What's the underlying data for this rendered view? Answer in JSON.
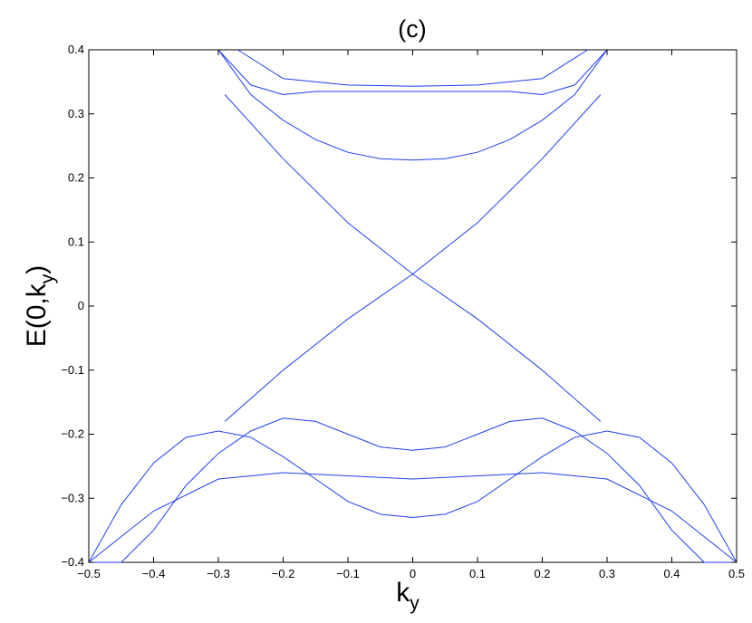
{
  "chart_data": {
    "type": "line",
    "title": "(c)",
    "xlabel": {
      "main": "k",
      "sub": "y"
    },
    "ylabel": {
      "prefix": "E(0,k",
      "sub": "y",
      "suffix": ")"
    },
    "xlim": [
      -0.5,
      0.5
    ],
    "ylim": [
      -0.4,
      0.4
    ],
    "x_ticks": [
      -0.5,
      -0.4,
      -0.3,
      -0.2,
      -0.1,
      0,
      0.1,
      0.2,
      0.3,
      0.4,
      0.5
    ],
    "x_tick_labels": [
      "−0.5",
      "−0.4",
      "−0.3",
      "−0.2",
      "−0.1",
      "0",
      "0.1",
      "0.2",
      "0.3",
      "0.4",
      "0.5"
    ],
    "y_ticks": [
      -0.4,
      -0.3,
      -0.2,
      -0.1,
      0,
      0.1,
      0.2,
      0.3,
      0.4
    ],
    "y_tick_labels": [
      "−0.4",
      "−0.3",
      "−0.2",
      "−0.1",
      "0",
      "0.1",
      "0.2",
      "0.3",
      "0.4"
    ],
    "grid": false,
    "line_color": "#1f3ff0",
    "series": [
      {
        "x": [
          -0.3,
          -0.25,
          -0.2,
          -0.15,
          -0.1,
          -0.05,
          0,
          0.05,
          0.1,
          0.15,
          0.2,
          0.25,
          0.3
        ],
        "y": [
          0.4,
          0.33,
          0.29,
          0.26,
          0.24,
          0.23,
          0.228,
          0.23,
          0.24,
          0.26,
          0.29,
          0.33,
          0.4
        ]
      },
      {
        "x": [
          -0.3,
          -0.25,
          -0.2,
          -0.15,
          -0.1,
          -0.05,
          0,
          0.05,
          0.1,
          0.15,
          0.2,
          0.25,
          0.3
        ],
        "y": [
          0.4,
          0.345,
          0.33,
          0.335,
          0.335,
          0.335,
          0.335,
          0.335,
          0.335,
          0.335,
          0.33,
          0.345,
          0.4
        ]
      },
      {
        "x": [
          -0.27,
          -0.2,
          -0.1,
          0,
          0.1,
          0.2,
          0.27
        ],
        "y": [
          0.4,
          0.355,
          0.345,
          0.343,
          0.345,
          0.355,
          0.4
        ]
      },
      {
        "x": [
          -0.29,
          -0.2,
          -0.1,
          0,
          0.1,
          0.2,
          0.29
        ],
        "y": [
          -0.18,
          -0.1,
          -0.02,
          0.05,
          0.13,
          0.23,
          0.33
        ]
      },
      {
        "x": [
          -0.29,
          -0.2,
          -0.1,
          0,
          0.1,
          0.2,
          0.29
        ],
        "y": [
          0.33,
          0.23,
          0.13,
          0.05,
          -0.02,
          -0.1,
          -0.18
        ]
      },
      {
        "x": [
          -0.5,
          -0.45,
          -0.4,
          -0.35,
          -0.3,
          -0.25,
          -0.2,
          -0.15,
          -0.1,
          -0.05,
          0,
          0.05,
          0.1,
          0.15,
          0.2,
          0.25,
          0.3,
          0.35,
          0.4,
          0.45,
          0.5
        ],
        "y": [
          -0.4,
          -0.31,
          -0.245,
          -0.205,
          -0.195,
          -0.205,
          -0.235,
          -0.27,
          -0.305,
          -0.325,
          -0.33,
          -0.325,
          -0.305,
          -0.27,
          -0.235,
          -0.205,
          -0.195,
          -0.205,
          -0.245,
          -0.31,
          -0.4
        ]
      },
      {
        "x": [
          -0.5,
          -0.45,
          -0.4,
          -0.35,
          -0.3,
          -0.25,
          -0.2,
          -0.15,
          -0.1,
          -0.05,
          0,
          0.05,
          0.1,
          0.15,
          0.2,
          0.25,
          0.3,
          0.35,
          0.4,
          0.45,
          0.5
        ],
        "y": [
          -0.55,
          -0.44,
          -0.35,
          -0.28,
          -0.23,
          -0.195,
          -0.175,
          -0.18,
          -0.2,
          -0.22,
          -0.225,
          -0.22,
          -0.2,
          -0.18,
          -0.175,
          -0.195,
          -0.23,
          -0.28,
          -0.35,
          -0.44,
          -0.55
        ]
      },
      {
        "x": [
          -0.5,
          -0.4,
          -0.3,
          -0.2,
          -0.1,
          0,
          0.1,
          0.2,
          0.3,
          0.4,
          0.5
        ],
        "y": [
          -0.42,
          -0.32,
          -0.27,
          -0.26,
          -0.265,
          -0.27,
          -0.265,
          -0.26,
          -0.27,
          -0.32,
          -0.42
        ]
      }
    ]
  }
}
